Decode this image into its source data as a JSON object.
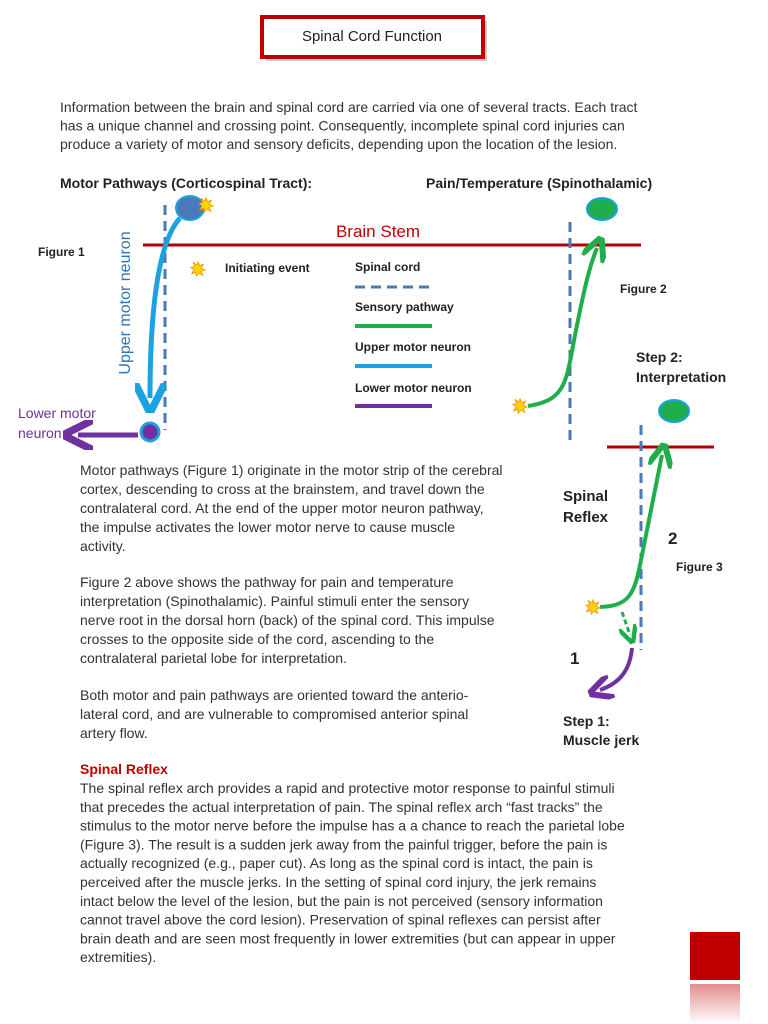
{
  "title": "Spinal Cord Function",
  "intro": [
    "Information between the brain and spinal cord are carried via one of several tracts. Each tract",
    "has a unique channel and crossing point. Consequently, incomplete spinal cord injuries can",
    "produce a variety of motor and sensory deficits, depending upon the location of the lesion."
  ],
  "figure1": {
    "heading": "Motor Pathways (Corticospinal Tract):",
    "label": "Figure 1",
    "brain_stem": "Brain Stem",
    "upper_label": "Upper motor neuron",
    "lower_label": [
      "Lower motor",
      "neuron"
    ]
  },
  "legend": {
    "initiating_event": "Initiating event",
    "spinal_cord": "Spinal cord",
    "sensory_pathway": "Sensory pathway",
    "upper_motor_neuron": "Upper motor neuron",
    "lower_motor_neuron": "Lower motor neuron"
  },
  "figure2": {
    "heading": "Pain/Temperature (Spinothalamic)",
    "label": "Figure 2"
  },
  "figure3": {
    "label": "Figure 3",
    "step2": [
      "Step 2:",
      "Interpretation"
    ],
    "spinal_reflex": [
      "Spinal",
      "Reflex"
    ],
    "marker_2": "2",
    "marker_1": "1",
    "step1": [
      "Step 1:",
      "Muscle jerk"
    ]
  },
  "body": {
    "p1": [
      "Motor pathways (Figure 1) originate in the motor strip of the cerebral",
      "cortex, descending to cross at the brainstem, and travel down the",
      "contralateral cord. At the end of the upper motor neuron pathway,",
      "the impulse activates the lower motor nerve to cause muscle",
      "activity."
    ],
    "p2": [
      "Figure 2 above shows the pathway for pain and temperature",
      "interpretation (Spinothalamic). Painful stimuli enter the sensory",
      "nerve root in the dorsal horn (back) of the spinal cord. This impulse",
      "crosses to the opposite side of the cord, ascending to the",
      "contralateral parietal lobe for interpretation."
    ],
    "p3": [
      "Both motor and pain pathways are oriented toward the anterio-",
      "lateral cord, and are vulnerable to compromised anterior spinal",
      "artery flow."
    ],
    "reflex_heading": "Spinal Reflex",
    "p4": [
      "The spinal reflex arch provides a rapid and protective motor response to painful stimuli",
      "that precedes the actual interpretation of pain. The spinal reflex arch “fast tracks” the",
      "stimulus to the motor nerve before the impulse has a a chance to reach the parietal lobe",
      "(Figure 3). The result is a sudden jerk away from the painful trigger, before the pain is",
      "actually recognized (e.g., paper cut). As long as the spinal cord is intact, the pain is",
      "perceived after the muscle jerks. In the setting of spinal cord injury, the jerk remains",
      "intact below the level of the lesion, but the pain is not perceived (sensory information",
      "cannot travel above the cord lesion). Preservation of spinal reflexes can persist after",
      "brain death and are seen most frequently in lower extremities (but can appear in upper",
      "extremities)."
    ]
  }
}
